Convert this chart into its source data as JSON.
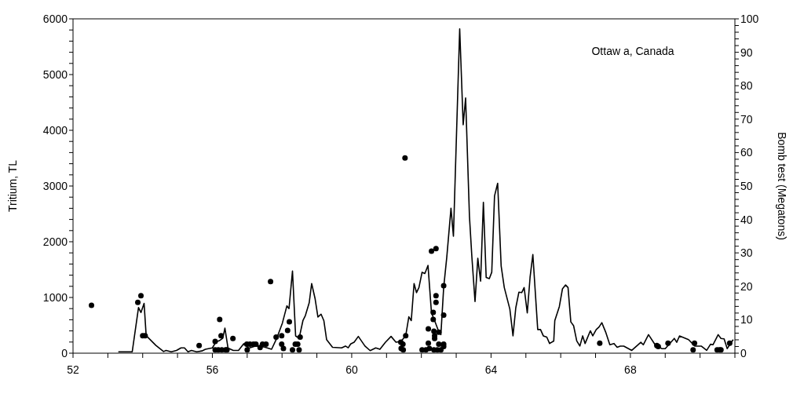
{
  "chart_data": {
    "type": "line",
    "ylabel": "Tritium, TL",
    "y2label": "Bomb test (Megatons)",
    "annotations": [
      "Ottaw a, Canada"
    ],
    "xlim": [
      52,
      71
    ],
    "xticks": [
      52,
      {
        "value": 53,
        "label": null
      },
      {
        "value": 54,
        "label": null
      },
      {
        "value": 55,
        "label": null
      },
      56,
      {
        "value": 57,
        "label": null
      },
      {
        "value": 58,
        "label": null
      },
      {
        "value": 59,
        "label": null
      },
      60,
      {
        "value": 61,
        "label": null
      },
      {
        "value": 62,
        "label": null
      },
      {
        "value": 63,
        "label": null
      },
      64,
      {
        "value": 65,
        "label": null
      },
      {
        "value": 66,
        "label": null
      },
      {
        "value": 67,
        "label": null
      },
      68,
      {
        "value": 69,
        "label": null
      },
      {
        "value": 70,
        "label": null
      },
      {
        "value": 71,
        "label": null
      }
    ],
    "ylim": [
      0,
      6000
    ],
    "yticks": [
      0,
      {
        "value": 200,
        "label": null
      },
      {
        "value": 400,
        "label": null
      },
      {
        "value": 600,
        "label": null
      },
      {
        "value": 800,
        "label": null
      },
      1000,
      {
        "value": 1200,
        "label": null
      },
      {
        "value": 1400,
        "label": null
      },
      {
        "value": 1600,
        "label": null
      },
      {
        "value": 1800,
        "label": null
      },
      2000,
      {
        "value": 2200,
        "label": null
      },
      {
        "value": 2400,
        "label": null
      },
      {
        "value": 2600,
        "label": null
      },
      {
        "value": 2800,
        "label": null
      },
      3000,
      {
        "value": 3200,
        "label": null
      },
      {
        "value": 3400,
        "label": null
      },
      {
        "value": 3600,
        "label": null
      },
      {
        "value": 3800,
        "label": null
      },
      4000,
      {
        "value": 4200,
        "label": null
      },
      {
        "value": 4400,
        "label": null
      },
      {
        "value": 4600,
        "label": null
      },
      {
        "value": 4800,
        "label": null
      },
      5000,
      {
        "value": 5200,
        "label": null
      },
      {
        "value": 5400,
        "label": null
      },
      {
        "value": 5600,
        "label": null
      },
      {
        "value": 5800,
        "label": null
      },
      6000
    ],
    "y2lim": [
      0,
      100
    ],
    "y2ticks": [
      0,
      {
        "value": 2,
        "label": null
      },
      {
        "value": 4,
        "label": null
      },
      {
        "value": 6,
        "label": null
      },
      {
        "value": 8,
        "label": null
      },
      10,
      {
        "value": 12,
        "label": null
      },
      {
        "value": 14,
        "label": null
      },
      {
        "value": 16,
        "label": null
      },
      {
        "value": 18,
        "label": null
      },
      20,
      {
        "value": 22,
        "label": null
      },
      {
        "value": 24,
        "label": null
      },
      {
        "value": 26,
        "label": null
      },
      {
        "value": 28,
        "label": null
      },
      30,
      {
        "value": 32,
        "label": null
      },
      {
        "value": 34,
        "label": null
      },
      {
        "value": 36,
        "label": null
      },
      {
        "value": 38,
        "label": null
      },
      40,
      {
        "value": 42,
        "label": null
      },
      {
        "value": 44,
        "label": null
      },
      {
        "value": 46,
        "label": null
      },
      {
        "value": 48,
        "label": null
      },
      50,
      {
        "value": 52,
        "label": null
      },
      {
        "value": 54,
        "label": null
      },
      {
        "value": 56,
        "label": null
      },
      {
        "value": 58,
        "label": null
      },
      60,
      {
        "value": 62,
        "label": null
      },
      {
        "value": 64,
        "label": null
      },
      {
        "value": 66,
        "label": null
      },
      {
        "value": 68,
        "label": null
      },
      70,
      {
        "value": 72,
        "label": null
      },
      {
        "value": 74,
        "label": null
      },
      {
        "value": 76,
        "label": null
      },
      {
        "value": 78,
        "label": null
      },
      80,
      {
        "value": 82,
        "label": null
      },
      {
        "value": 84,
        "label": null
      },
      {
        "value": 86,
        "label": null
      },
      {
        "value": 88,
        "label": null
      },
      90,
      {
        "value": 92,
        "label": null
      },
      {
        "value": 94,
        "label": null
      },
      {
        "value": 96,
        "label": null
      },
      {
        "value": 98,
        "label": null
      },
      100
    ],
    "grid": false,
    "line_style": "solid",
    "series": [
      {
        "color": "#000000",
        "x": [
          53.3,
          53.5,
          53.7,
          53.88,
          53.95,
          54.04,
          54.1,
          54.38,
          54.6,
          54.67,
          54.82,
          54.97,
          55.1,
          55.2,
          55.3,
          55.4,
          55.55,
          55.7,
          55.8,
          56.0,
          56.1,
          56.2,
          56.3,
          56.36,
          56.45,
          56.6,
          56.75,
          56.9,
          57.05,
          57.25,
          57.5,
          57.7,
          57.85,
          58.01,
          58.14,
          58.2,
          58.3,
          58.39,
          58.49,
          58.6,
          58.67,
          58.78,
          58.85,
          58.95,
          59.03,
          59.12,
          59.2,
          59.28,
          59.45,
          59.71,
          59.82,
          59.9,
          59.97,
          60.07,
          60.19,
          60.38,
          60.53,
          60.69,
          60.81,
          60.97,
          61.13,
          61.27,
          61.41,
          61.55,
          61.64,
          61.71,
          61.79,
          61.86,
          61.93,
          62.02,
          62.1,
          62.19,
          62.29,
          62.38,
          62.49,
          62.56,
          62.64,
          62.73,
          62.85,
          62.92,
          63.1,
          63.2,
          63.27,
          63.38,
          63.45,
          63.54,
          63.62,
          63.7,
          63.78,
          63.86,
          63.95,
          64.02,
          64.1,
          64.19,
          64.29,
          64.38,
          64.54,
          64.63,
          64.71,
          64.8,
          64.88,
          64.95,
          65.04,
          65.12,
          65.2,
          65.34,
          65.42,
          65.5,
          65.6,
          65.68,
          65.8,
          65.83,
          65.96,
          66.05,
          66.14,
          66.21,
          66.29,
          66.37,
          66.46,
          66.55,
          66.63,
          66.7,
          66.85,
          66.92,
          67.02,
          67.1,
          67.18,
          67.29,
          67.41,
          67.53,
          67.62,
          67.71,
          67.81,
          68.04,
          68.3,
          68.37,
          68.52,
          68.71,
          68.9,
          69.0,
          69.26,
          69.33,
          69.41,
          69.67,
          69.85,
          70.04,
          70.19,
          70.3,
          70.37,
          70.52,
          70.6,
          70.69,
          70.78,
          70.85,
          70.95
        ],
        "values": [
          25,
          25,
          25,
          820,
          730,
          895,
          315,
          140,
          30,
          50,
          25,
          50,
          95,
          95,
          25,
          50,
          25,
          40,
          70,
          95,
          200,
          225,
          270,
          450,
          90,
          50,
          50,
          170,
          90,
          130,
          110,
          70,
          270,
          540,
          850,
          800,
          1475,
          310,
          265,
          585,
          675,
          905,
          1250,
          975,
          650,
          700,
          585,
          242,
          105,
          96,
          128,
          96,
          165,
          197,
          301,
          128,
          46,
          96,
          69,
          197,
          301,
          197,
          210,
          310,
          653,
          585,
          1250,
          1087,
          1178,
          1452,
          1430,
          1575,
          722,
          585,
          402,
          333,
          1178,
          1726,
          2600,
          2100,
          5820,
          4100,
          4580,
          2456,
          1726,
          927,
          1703,
          1292,
          2707,
          1360,
          1338,
          1452,
          2822,
          3050,
          1566,
          1178,
          790,
          311,
          813,
          1096,
          1087,
          1178,
          722,
          1360,
          1771,
          425,
          425,
          311,
          288,
          174,
          219,
          584,
          836,
          1155,
          1224,
          1178,
          562,
          493,
          219,
          128,
          311,
          174,
          402,
          311,
          425,
          470,
          548,
          379,
          151,
          174,
          105,
          126,
          126,
          50,
          196,
          151,
          333,
          151,
          82,
          82,
          265,
          196,
          310,
          242,
          126,
          126,
          50,
          160,
          151,
          333,
          265,
          256,
          82,
          151,
          242
        ]
      },
      {
        "type": "scatter",
        "axis": "y2",
        "marker": "circle",
        "color": "#000000",
        "x": [
          52.53,
          53.86,
          53.95,
          54.0,
          54.07,
          55.62,
          56.08,
          56.21,
          56.25,
          56.08,
          56.17,
          56.27,
          56.38,
          56.42,
          56.59,
          57.0,
          56.99,
          57.08,
          57.18,
          57.25,
          57.37,
          57.44,
          57.54,
          57.67,
          57.83,
          57.99,
          57.99,
          58.04,
          58.16,
          58.21,
          58.3,
          58.49,
          58.38,
          58.45,
          58.52,
          61.41,
          61.47,
          61.42,
          61.48,
          61.55,
          61.53,
          62.02,
          62.13,
          62.23,
          62.36,
          62.46,
          62.56,
          62.2,
          62.29,
          62.42,
          62.42,
          62.42,
          62.34,
          62.34,
          62.2,
          62.36,
          62.38,
          62.38,
          62.5,
          62.5,
          62.64,
          62.64,
          62.64,
          62.64,
          67.12,
          68.76,
          68.8,
          69.08,
          69.8,
          69.84,
          70.49,
          70.56,
          70.6,
          70.85
        ],
        "values": [
          14.3,
          15.2,
          17.2,
          5.2,
          5.2,
          2.3,
          3.5,
          10.1,
          5.2,
          1.0,
          1.0,
          1.0,
          1.0,
          1.0,
          4.4,
          1.0,
          2.7,
          2.7,
          2.7,
          2.7,
          1.7,
          2.7,
          2.7,
          21.4,
          4.8,
          5.2,
          2.7,
          1.4,
          6.8,
          9.4,
          1.0,
          1.0,
          2.7,
          2.7,
          4.8,
          3.3,
          2.7,
          1.4,
          1.0,
          5.2,
          58.4,
          1.0,
          1.0,
          1.4,
          1.0,
          1.0,
          1.0,
          3.0,
          30.5,
          31.3,
          17.2,
          15.2,
          12.2,
          10.1,
          7.3,
          6.6,
          5.2,
          4.4,
          6.3,
          2.7,
          2.7,
          2.0,
          11.4,
          20.2,
          3.0,
          2.3,
          2.0,
          3.0,
          1.0,
          3.0,
          1.0,
          1.0,
          1.0,
          3.0
        ]
      }
    ]
  }
}
